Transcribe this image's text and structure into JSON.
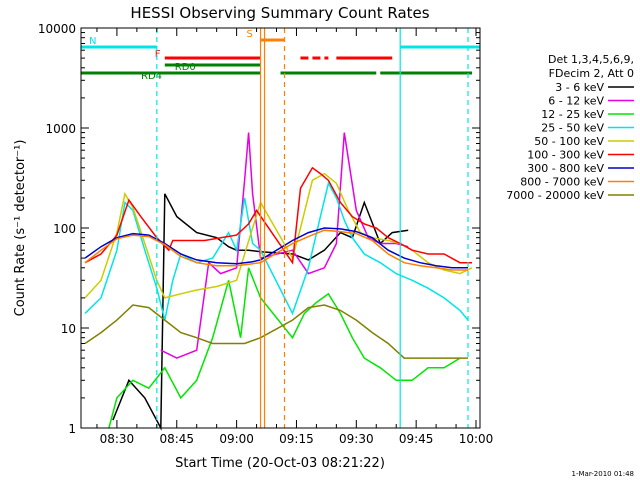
{
  "chart_data": {
    "type": "line",
    "title": "HESSI Observing Summary Count Rates",
    "xlabel": "Start Time (20-Oct-03 08:21:22)",
    "ylabel": "Count Rate (s⁻¹ detector⁻¹)",
    "y_scale": "log",
    "ylim": [
      1,
      10000
    ],
    "xlim": [
      "08:21",
      "10:01"
    ],
    "x_ticks": [
      "08:30",
      "08:45",
      "09:00",
      "09:15",
      "09:30",
      "09:45",
      "10:00"
    ],
    "y_ticks": [
      "1",
      "10",
      "100",
      "1000",
      "10000"
    ],
    "legend_header": [
      "Det 1,3,4,5,6,9,",
      "FDecim 2, Att 0"
    ],
    "legend_position": "right",
    "series": [
      {
        "name": "3 - 6 keV",
        "color": "#000000",
        "x": [
          "08:29",
          "08:33",
          "08:37",
          "08:41",
          "08:42",
          "08:45",
          "08:50",
          "08:55",
          "08:58",
          "09:00",
          "09:03",
          "09:06",
          "09:14",
          "09:18",
          "09:22",
          "09:26",
          "09:29",
          "09:32",
          "09:36",
          "09:39",
          "09:43"
        ],
        "y": [
          1.2,
          3,
          2,
          1,
          220,
          130,
          90,
          80,
          65,
          60,
          60,
          58,
          55,
          48,
          60,
          90,
          80,
          180,
          70,
          90,
          95
        ]
      },
      {
        "name": "6 - 12 keV",
        "color": "#e600e6",
        "x": [
          "08:41",
          "08:45",
          "08:50",
          "08:53",
          "08:56",
          "09:00",
          "09:02",
          "09:03",
          "09:04",
          "09:06",
          "09:14",
          "09:18",
          "09:22",
          "09:25",
          "09:27",
          "09:30",
          "09:33",
          "09:36",
          "09:40",
          "09:43"
        ],
        "y": [
          6,
          5,
          6,
          45,
          35,
          40,
          300,
          900,
          220,
          50,
          60,
          35,
          40,
          70,
          900,
          150,
          80,
          70,
          70,
          65
        ]
      },
      {
        "name": "12 - 25 keV",
        "color": "#00e600",
        "x": [
          "08:28",
          "08:30",
          "08:34",
          "08:38",
          "08:42",
          "08:46",
          "08:50",
          "08:54",
          "08:58",
          "09:01",
          "09:03",
          "09:06",
          "09:14",
          "09:17",
          "09:20",
          "09:23",
          "09:26",
          "09:29",
          "09:32",
          "09:36",
          "09:40",
          "09:44",
          "09:48",
          "09:52",
          "09:56"
        ],
        "y": [
          1,
          2,
          3,
          2.5,
          4,
          2,
          3,
          8,
          30,
          8,
          40,
          20,
          8,
          14,
          18,
          22,
          14,
          8,
          5,
          4,
          3,
          3,
          4,
          4,
          5
        ]
      },
      {
        "name": "25 - 50 keV",
        "color": "#00e6e6",
        "x": [
          "08:22",
          "08:26",
          "08:30",
          "08:32",
          "08:34",
          "08:37",
          "08:40",
          "08:42",
          "08:44",
          "08:46",
          "08:50",
          "08:54",
          "08:58",
          "09:00",
          "09:02",
          "09:04",
          "09:06",
          "09:14",
          "09:18",
          "09:21",
          "09:23",
          "09:25",
          "09:27",
          "09:29",
          "09:32",
          "09:36",
          "09:40",
          "09:44",
          "09:48",
          "09:52",
          "09:56",
          "09:58"
        ],
        "y": [
          14,
          20,
          60,
          180,
          150,
          60,
          25,
          12,
          30,
          55,
          45,
          50,
          90,
          60,
          200,
          70,
          60,
          14,
          40,
          130,
          280,
          200,
          120,
          80,
          55,
          45,
          35,
          30,
          25,
          20,
          15,
          12
        ]
      },
      {
        "name": "50 - 100 keV",
        "color": "#cccc00",
        "x": [
          "08:22",
          "08:26",
          "08:30",
          "08:32",
          "08:34",
          "08:37",
          "08:40",
          "08:42",
          "08:46",
          "08:50",
          "08:55",
          "09:00",
          "09:04",
          "09:06",
          "09:14",
          "09:16",
          "09:19",
          "09:22",
          "09:25",
          "09:28",
          "09:31",
          "09:34",
          "09:38",
          "09:41",
          "09:44",
          "09:48",
          "09:52",
          "09:56",
          "09:59"
        ],
        "y": [
          20,
          30,
          90,
          220,
          160,
          70,
          30,
          20,
          22,
          24,
          26,
          30,
          100,
          180,
          50,
          100,
          300,
          350,
          280,
          150,
          90,
          80,
          75,
          70,
          60,
          45,
          38,
          35,
          40
        ]
      },
      {
        "name": "100 - 300 keV",
        "color": "#ff0000",
        "x": [
          "08:22",
          "08:26",
          "08:30",
          "08:33",
          "08:36",
          "08:40",
          "08:43",
          "08:44",
          "08:48",
          "08:52",
          "08:56",
          "09:00",
          "09:03",
          "09:05",
          "09:14",
          "09:16",
          "09:19",
          "09:21",
          "09:23",
          "09:26",
          "09:29",
          "09:32",
          "09:35",
          "09:38",
          "09:41",
          "09:44",
          "09:48",
          "09:52",
          "09:56",
          "09:59"
        ],
        "y": [
          45,
          55,
          85,
          190,
          130,
          80,
          60,
          75,
          75,
          75,
          80,
          85,
          110,
          150,
          45,
          250,
          400,
          350,
          300,
          180,
          130,
          110,
          100,
          80,
          70,
          60,
          55,
          55,
          45,
          45
        ]
      },
      {
        "name": "300 - 800 keV",
        "color": "#0000cc",
        "x": [
          "08:22",
          "08:26",
          "08:30",
          "08:34",
          "08:38",
          "08:42",
          "08:46",
          "08:50",
          "08:55",
          "09:00",
          "09:04",
          "09:06",
          "09:14",
          "09:18",
          "09:22",
          "09:26",
          "09:30",
          "09:34",
          "09:38",
          "09:42",
          "09:46",
          "09:50",
          "09:54",
          "09:58"
        ],
        "y": [
          50,
          65,
          80,
          88,
          85,
          70,
          55,
          48,
          45,
          44,
          46,
          48,
          75,
          90,
          100,
          98,
          92,
          80,
          60,
          50,
          45,
          42,
          40,
          40
        ]
      },
      {
        "name": "800 - 7000 keV",
        "color": "#ff8000",
        "x": [
          "08:22",
          "08:26",
          "08:30",
          "08:34",
          "08:38",
          "08:42",
          "08:46",
          "08:50",
          "08:55",
          "09:00",
          "09:04",
          "09:06",
          "09:14",
          "09:18",
          "09:22",
          "09:26",
          "09:30",
          "09:34",
          "09:38",
          "09:42",
          "09:46",
          "09:50",
          "09:54",
          "09:58"
        ],
        "y": [
          45,
          60,
          78,
          85,
          82,
          68,
          52,
          45,
          42,
          42,
          44,
          45,
          70,
          82,
          95,
          92,
          88,
          75,
          55,
          45,
          42,
          40,
          38,
          38
        ]
      },
      {
        "name": "7000 - 20000 keV",
        "color": "#808000",
        "x": [
          "08:22",
          "08:26",
          "08:30",
          "08:34",
          "08:38",
          "08:42",
          "08:46",
          "08:50",
          "08:54",
          "08:58",
          "09:02",
          "09:06",
          "09:14",
          "09:18",
          "09:22",
          "09:26",
          "09:30",
          "09:34",
          "09:38",
          "09:42",
          "09:46",
          "09:50",
          "09:54",
          "09:58"
        ],
        "y": [
          7,
          9,
          12,
          17,
          16,
          12,
          9,
          8,
          7,
          7,
          7,
          8,
          12,
          16,
          17,
          15,
          12,
          9,
          7,
          5,
          5,
          5,
          5,
          5
        ]
      }
    ],
    "state_bars": [
      {
        "label": "N",
        "color": "#00e6e6",
        "segments": [
          [
            "08:21",
            "08:40"
          ],
          [
            "09:41",
            "10:01"
          ]
        ]
      },
      {
        "label": "F",
        "color": "#ff0000",
        "segments": [
          [
            "08:42",
            "09:06"
          ],
          [
            "09:16",
            "09:18"
          ],
          [
            "09:19",
            "09:21"
          ],
          [
            "09:22",
            "09:23"
          ],
          [
            "09:25",
            "09:39"
          ]
        ]
      },
      {
        "label": "S",
        "color": "#ff8000",
        "segments": [
          [
            "09:06",
            "09:12"
          ]
        ]
      },
      {
        "label": "RD0",
        "color": "#008000",
        "segments": [
          [
            "08:42",
            "09:06"
          ]
        ]
      },
      {
        "label": "RD4",
        "color": "#008000",
        "segments": [
          [
            "08:21",
            "09:06"
          ],
          [
            "09:11",
            "09:35"
          ],
          [
            "09:36",
            "09:57"
          ],
          [
            "09:57",
            "09:59"
          ]
        ]
      }
    ],
    "markers": [
      {
        "time": "08:40",
        "color": "#00e6e6",
        "style": "dashed"
      },
      {
        "time": "09:41",
        "color": "#00e6e6",
        "style": "solid"
      },
      {
        "time": "09:58",
        "color": "#00e6e6",
        "style": "dashed"
      },
      {
        "time": "09:06",
        "color": "#ff8000",
        "style": "solid"
      },
      {
        "time": "09:07",
        "color": "#ff8000",
        "style": "solid"
      },
      {
        "time": "09:12",
        "color": "#ff8000",
        "style": "dashed"
      }
    ],
    "footer_date": "1-Mar-2010 01:48"
  }
}
